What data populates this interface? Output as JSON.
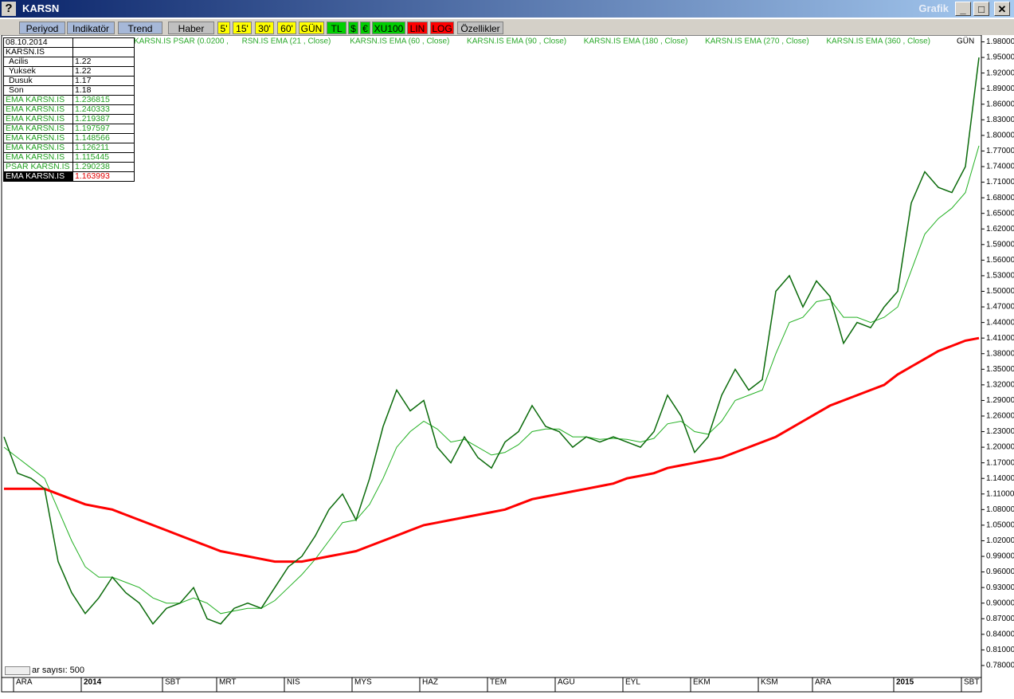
{
  "window": {
    "title": "KARSN",
    "right_label": "Grafik"
  },
  "toolbar": {
    "buttons": [
      "Periyod",
      "Indikatör",
      "Trend",
      "Haber",
      "5'",
      "15'",
      "30'",
      "60'",
      "GÜN",
      "TL",
      "$",
      "€",
      "XU100",
      "LIN",
      "LOG",
      "Özellikler"
    ]
  },
  "info": {
    "date": "08.10.2014",
    "symbol": "KARSN.IS",
    "rows": [
      [
        "Acilis",
        "1.22"
      ],
      [
        "Yuksek",
        "1.22"
      ],
      [
        "Dusuk",
        "1.17"
      ],
      [
        "Son",
        "1.18"
      ],
      [
        "EMA KARSN.IS",
        "1.236815"
      ],
      [
        "EMA KARSN.IS",
        "1.240333"
      ],
      [
        "EMA KARSN.IS",
        "1.219387"
      ],
      [
        "EMA KARSN.IS",
        "1.197597"
      ],
      [
        "EMA KARSN.IS",
        "1.148566"
      ],
      [
        "EMA KARSN.IS",
        "1.126211"
      ],
      [
        "EMA KARSN.IS",
        "1.115445"
      ],
      [
        "PSAR KARSN.IS",
        "1.290238"
      ],
      [
        "EMA KARSN.IS",
        "1.163993"
      ]
    ]
  },
  "bar_count": "ar sayısı: 500",
  "chart_data": {
    "type": "line",
    "period_label": "GÜN",
    "legend_extra": [
      "KARSN.IS EMA (60 , Close)",
      "KARSN.IS EMA (90 , Close)",
      "KARSN.IS EMA (180 , Close)",
      "KARSN.IS EMA (270 , Close)",
      "KARSN.IS PSAR (0.0200 ,"
    ],
    "categories": [
      null,
      "ARA",
      null,
      null,
      null,
      null,
      "2014",
      null,
      null,
      null,
      null,
      null,
      "SBT",
      null,
      null,
      null,
      "MRT",
      null,
      null,
      null,
      null,
      "NIS",
      null,
      null,
      null,
      null,
      "MYS",
      null,
      null,
      null,
      null,
      "HAZ",
      null,
      null,
      null,
      null,
      "TEM",
      null,
      null,
      null,
      null,
      "AGU",
      null,
      null,
      null,
      null,
      "EYL",
      null,
      null,
      null,
      null,
      "EKM",
      null,
      null,
      null,
      null,
      "KSM",
      null,
      null,
      null,
      "ARA",
      null,
      null,
      null,
      null,
      null,
      "2015",
      null,
      null,
      null,
      null,
      "SBT",
      null
    ],
    "series": [
      {
        "name": "RSN.IS EMA (21 , Close)",
        "color": "#22b022",
        "width": 1,
        "values": [
          1.2,
          1.18,
          1.16,
          1.14,
          1.08,
          1.02,
          0.97,
          0.95,
          0.95,
          0.94,
          0.93,
          0.91,
          0.9,
          0.9,
          0.91,
          0.9,
          0.88,
          0.885,
          0.89,
          0.89,
          0.905,
          0.93,
          0.955,
          0.985,
          1.02,
          1.055,
          1.06,
          1.09,
          1.14,
          1.2,
          1.23,
          1.25,
          1.235,
          1.21,
          1.215,
          1.2,
          1.185,
          1.19,
          1.205,
          1.23,
          1.235,
          1.235,
          1.22,
          1.22,
          1.215,
          1.217,
          1.215,
          1.21,
          1.217,
          1.245,
          1.25,
          1.23,
          1.225,
          1.25,
          1.29,
          1.3,
          1.31,
          1.38,
          1.44,
          1.45,
          1.48,
          1.485,
          1.45,
          1.45,
          1.44,
          1.45,
          1.47,
          1.54,
          1.61,
          1.64,
          1.66,
          1.69,
          1.78
        ]
      },
      {
        "name": "KARSN.IS EMA (360 , Close)",
        "color": "#ff0000",
        "width": 3,
        "values": [
          1.12,
          1.12,
          1.12,
          1.12,
          1.11,
          1.1,
          1.09,
          1.085,
          1.08,
          1.07,
          1.06,
          1.05,
          1.04,
          1.03,
          1.02,
          1.01,
          1.0,
          0.995,
          0.99,
          0.985,
          0.98,
          0.98,
          0.98,
          0.985,
          0.99,
          0.995,
          1.0,
          1.01,
          1.02,
          1.03,
          1.04,
          1.05,
          1.055,
          1.06,
          1.065,
          1.07,
          1.075,
          1.08,
          1.09,
          1.1,
          1.105,
          1.11,
          1.115,
          1.12,
          1.125,
          1.13,
          1.14,
          1.145,
          1.15,
          1.16,
          1.165,
          1.17,
          1.175,
          1.18,
          1.19,
          1.2,
          1.21,
          1.22,
          1.235,
          1.25,
          1.265,
          1.28,
          1.29,
          1.3,
          1.31,
          1.32,
          1.34,
          1.355,
          1.37,
          1.385,
          1.395,
          1.405,
          1.41
        ]
      },
      {
        "name": "KARSN.IS",
        "color": "#0a6a0a",
        "width": 1.5,
        "values": [
          1.22,
          1.15,
          1.14,
          1.12,
          0.98,
          0.92,
          0.88,
          0.91,
          0.95,
          0.92,
          0.9,
          0.86,
          0.89,
          0.9,
          0.93,
          0.87,
          0.86,
          0.89,
          0.9,
          0.89,
          0.93,
          0.97,
          0.99,
          1.03,
          1.08,
          1.11,
          1.06,
          1.14,
          1.24,
          1.31,
          1.27,
          1.29,
          1.2,
          1.17,
          1.22,
          1.18,
          1.16,
          1.21,
          1.23,
          1.28,
          1.24,
          1.23,
          1.2,
          1.22,
          1.21,
          1.22,
          1.21,
          1.2,
          1.23,
          1.3,
          1.26,
          1.19,
          1.22,
          1.3,
          1.35,
          1.31,
          1.33,
          1.5,
          1.53,
          1.47,
          1.52,
          1.49,
          1.4,
          1.44,
          1.43,
          1.47,
          1.5,
          1.67,
          1.73,
          1.7,
          1.69,
          1.74,
          1.95
        ]
      }
    ],
    "ylim": [
      0.76,
      1.99
    ],
    "yticks": [
      {
        "value": 1.98,
        "label": "1.98000"
      },
      {
        "value": 1.95,
        "label": "1.95000"
      },
      {
        "value": 1.92,
        "label": "1.92000"
      },
      {
        "value": 1.89,
        "label": "1.89000"
      },
      {
        "value": 1.86,
        "label": "1.86000"
      },
      {
        "value": 1.83,
        "label": "1.83000"
      },
      {
        "value": 1.8,
        "label": "1.80000"
      },
      {
        "value": 1.77,
        "label": "1.77000"
      },
      {
        "value": 1.74,
        "label": "1.74000"
      },
      {
        "value": 1.71,
        "label": "1.71000"
      },
      {
        "value": 1.68,
        "label": "1.68000"
      },
      {
        "value": 1.65,
        "label": "1.65000"
      },
      {
        "value": 1.62,
        "label": "1.62000"
      },
      {
        "value": 1.59,
        "label": "1.59000"
      },
      {
        "value": 1.56,
        "label": "1.56000"
      },
      {
        "value": 1.53,
        "label": "1.53000"
      },
      {
        "value": 1.5,
        "label": "1.50000"
      },
      {
        "value": 1.47,
        "label": "1.47000"
      },
      {
        "value": 1.44,
        "label": "1.44000"
      },
      {
        "value": 1.41,
        "label": "1.41000"
      },
      {
        "value": 1.38,
        "label": "1.38000"
      },
      {
        "value": 1.35,
        "label": "1.35000"
      },
      {
        "value": 1.32,
        "label": "1.32000"
      },
      {
        "value": 1.29,
        "label": "1.29000"
      },
      {
        "value": 1.26,
        "label": "1.26000"
      },
      {
        "value": 1.23,
        "label": "1.23000"
      },
      {
        "value": 1.2,
        "label": "1.20000"
      },
      {
        "value": 1.17,
        "label": "1.17000"
      },
      {
        "value": 1.14,
        "label": "1.14000"
      },
      {
        "value": 1.11,
        "label": "1.11000"
      },
      {
        "value": 1.08,
        "label": "1.08000"
      },
      {
        "value": 1.05,
        "label": "1.05000"
      },
      {
        "value": 1.02,
        "label": "1.02000"
      },
      {
        "value": 0.99,
        "label": "0.99000"
      },
      {
        "value": 0.96,
        "label": "0.96000"
      },
      {
        "value": 0.93,
        "label": "0.93000"
      },
      {
        "value": 0.9,
        "label": "0.90000"
      },
      {
        "value": 0.87,
        "label": "0.87000"
      },
      {
        "value": 0.84,
        "label": "0.84000"
      },
      {
        "value": 0.81,
        "label": "0.81000"
      },
      {
        "value": 0.78,
        "label": "0.78000"
      }
    ]
  }
}
